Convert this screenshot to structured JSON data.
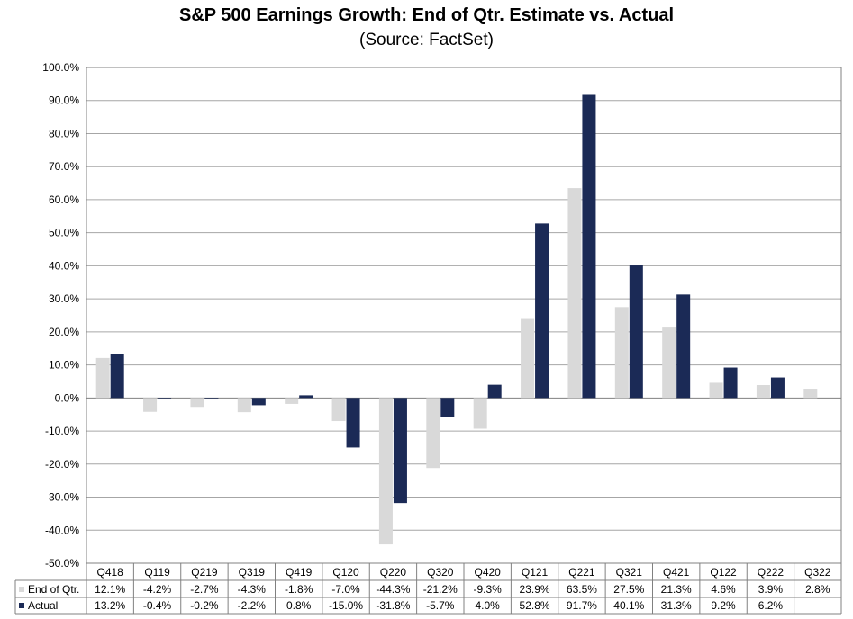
{
  "chart_data": {
    "type": "bar",
    "title": "S&P 500 Earnings Growth: End of Qtr. Estimate vs. Actual",
    "subtitle": "(Source: FactSet)",
    "categories": [
      "Q418",
      "Q119",
      "Q219",
      "Q319",
      "Q419",
      "Q120",
      "Q220",
      "Q320",
      "Q420",
      "Q121",
      "Q221",
      "Q321",
      "Q421",
      "Q122",
      "Q222",
      "Q322"
    ],
    "series": [
      {
        "name": "End of Qtr.",
        "color": "#d9d9d9",
        "values": [
          12.1,
          -4.2,
          -2.7,
          -4.3,
          -1.8,
          -7.0,
          -44.3,
          -21.2,
          -9.3,
          23.9,
          63.5,
          27.5,
          21.3,
          4.6,
          3.9,
          2.8
        ],
        "labels": [
          "12.1%",
          "-4.2%",
          "-2.7%",
          "-4.3%",
          "-1.8%",
          "-7.0%",
          "-44.3%",
          "-21.2%",
          "-9.3%",
          "23.9%",
          "63.5%",
          "27.5%",
          "21.3%",
          "4.6%",
          "3.9%",
          "2.8%"
        ]
      },
      {
        "name": "Actual",
        "color": "#1b2a56",
        "values": [
          13.2,
          -0.4,
          -0.2,
          -2.2,
          0.8,
          -15.0,
          -31.8,
          -5.7,
          4.0,
          52.8,
          91.7,
          40.1,
          31.3,
          9.2,
          6.2,
          null
        ],
        "labels": [
          "13.2%",
          "-0.4%",
          "-0.2%",
          "-2.2%",
          "0.8%",
          "-15.0%",
          "-31.8%",
          "-5.7%",
          "4.0%",
          "52.8%",
          "91.7%",
          "40.1%",
          "31.3%",
          "9.2%",
          "6.2%",
          ""
        ]
      }
    ],
    "ylim": [
      -50,
      100
    ],
    "ystep": 10,
    "ytick_labels": [
      "100.0%",
      "90.0%",
      "80.0%",
      "70.0%",
      "60.0%",
      "50.0%",
      "40.0%",
      "30.0%",
      "20.0%",
      "10.0%",
      "0.0%",
      "-10.0%",
      "-20.0%",
      "-30.0%",
      "-40.0%",
      "-50.0%"
    ],
    "grid": true,
    "legend": "data-table"
  }
}
